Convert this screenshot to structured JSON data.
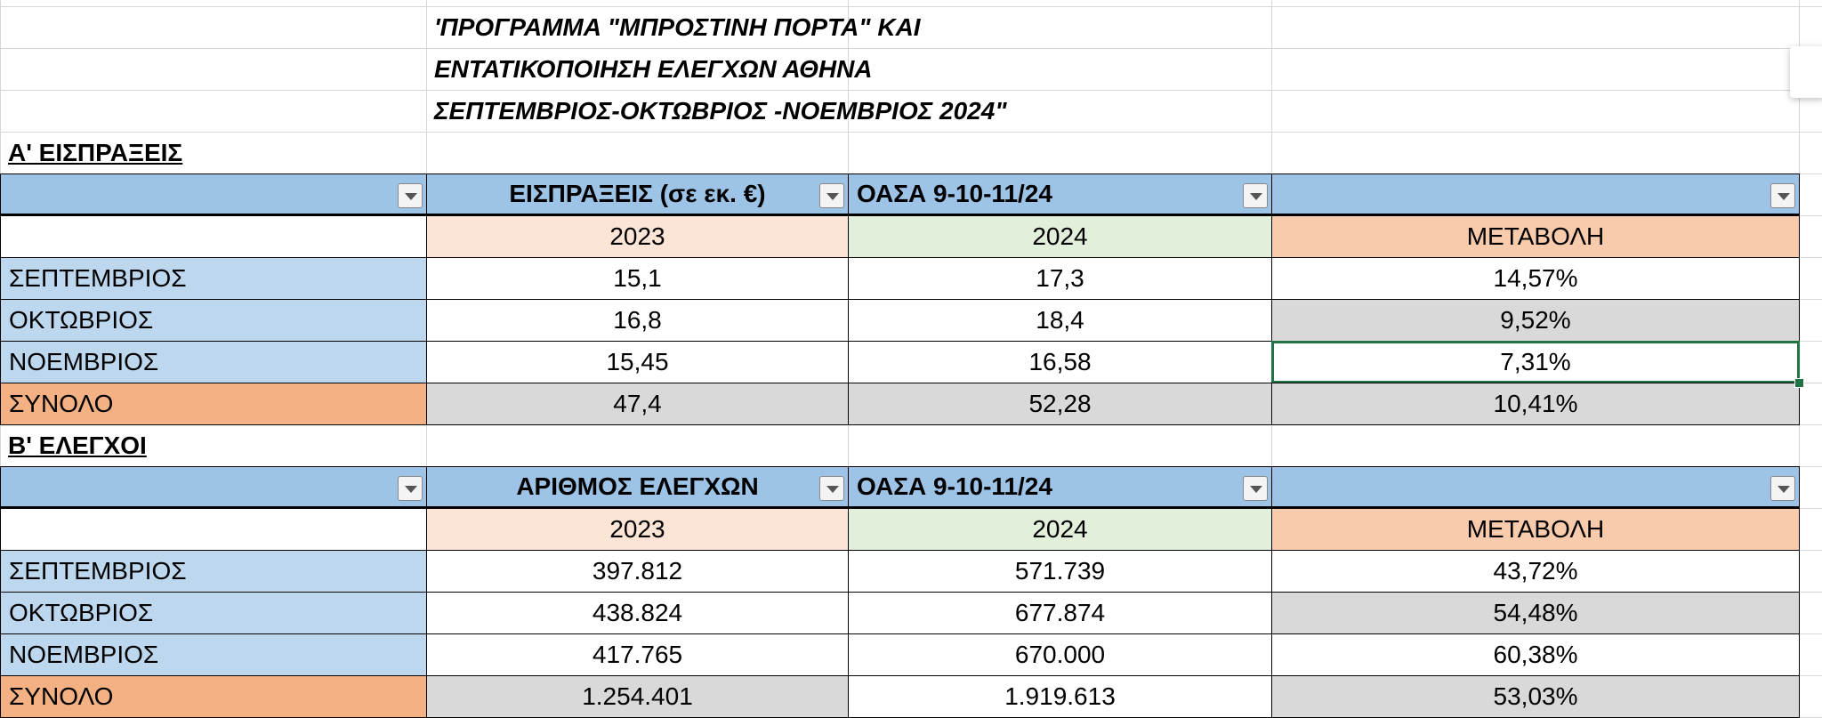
{
  "title_lines": [
    "'ΠΡΟΓΡΑΜΜΑ \"ΜΠΡΟΣΤΙΝΗ ΠΟΡΤΑ\" ΚΑΙ",
    "ΕΝΤΑΤΙΚΟΠΟΙΗΣΗ ΕΛΕΓΧΩΝ ΑΘΗΝΑ",
    "ΣΕΠΤΕΜΒΡΙΟΣ-ΟΚΤΩΒΡΙΟΣ -ΝΟΕΜΒΡΙΟΣ 2024\""
  ],
  "sections": [
    {
      "heading": "Α' ΕΙΣΠΡΑΞΕΙΣ",
      "header": [
        "ΕΙΣΠΡΑΞΕΙΣ (σε εκ. €)",
        "ΟΑΣΑ  9-10-11/24"
      ],
      "subheader": [
        "2023",
        "2024",
        "ΜΕΤΑΒΟΛΗ"
      ],
      "rows": [
        [
          "ΣΕΠΤΕΜΒΡΙΟΣ",
          "15,1",
          "17,3",
          "14,57%"
        ],
        [
          "ΟΚΤΩΒΡΙΟΣ",
          "16,8",
          "18,4",
          "9,52%"
        ],
        [
          "ΝΟΕΜΒΡΙΟΣ",
          "15,45",
          "16,58",
          "7,31%"
        ],
        [
          "ΣΥΝΟΛΟ",
          "47,4",
          "52,28",
          "10,41%"
        ]
      ]
    },
    {
      "heading": "Β'  ΕΛΕΓΧΟΙ",
      "header": [
        "ΑΡΙΘΜΟΣ ΕΛΕΓΧΩΝ",
        "ΟΑΣΑ  9-10-11/24"
      ],
      "subheader": [
        "2023",
        "2024",
        "ΜΕΤΑΒΟΛΗ"
      ],
      "rows": [
        [
          "ΣΕΠΤΕΜΒΡΙΟΣ",
          "397.812",
          "571.739",
          "43,72%"
        ],
        [
          "ΟΚΤΩΒΡΙΟΣ",
          "438.824",
          "677.874",
          "54,48%"
        ],
        [
          "ΝΟΕΜΒΡΙΟΣ",
          "417.765",
          "670.000",
          "60,38%"
        ],
        [
          "ΣΥΝΟΛΟ",
          "1.254.401",
          "1.919.613",
          "53,03%"
        ]
      ]
    }
  ]
}
